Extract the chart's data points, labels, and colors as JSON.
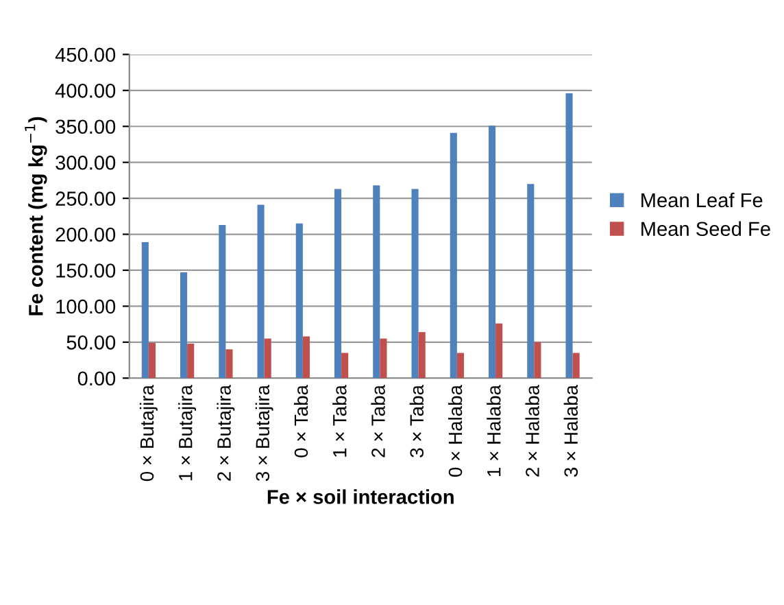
{
  "chart_data": {
    "type": "bar",
    "xlabel": "Fe × soil interaction",
    "ylabel": "Fe content (mg kg$^{−1}$)",
    "categories": [
      "0 × Butajira",
      "1 × Butajira",
      "2 × Butajira",
      "3 × Butajira",
      "0 × Taba",
      "1 × Taba",
      "2 × Taba",
      "3 × Taba",
      "0 × Halaba",
      "1 × Halaba",
      "2 × Halaba",
      "3 × Halaba"
    ],
    "series": [
      {
        "name": "Mean Leaf Fe",
        "color": "#4f81bd",
        "values": [
          189,
          147,
          213,
          241,
          215,
          263,
          268,
          263,
          341,
          351,
          270,
          396
        ]
      },
      {
        "name": "Mean Seed Fe",
        "color": "#c0504d",
        "values": [
          49,
          48,
          40,
          55,
          58,
          35,
          55,
          64,
          35,
          76,
          50,
          35
        ]
      }
    ],
    "ylim": [
      0,
      450
    ],
    "yticks": [
      {
        "value": 0,
        "label": "0.00"
      },
      {
        "value": 50,
        "label": "50.00"
      },
      {
        "value": 100,
        "label": "100.00"
      },
      {
        "value": 150,
        "label": "150.00"
      },
      {
        "value": 200,
        "label": "200.00"
      },
      {
        "value": 250,
        "label": "250.00"
      },
      {
        "value": 300,
        "label": "300.00"
      },
      {
        "value": 350,
        "label": "350.00"
      },
      {
        "value": 400,
        "label": "400.00"
      },
      {
        "value": 450,
        "label": "450.00"
      }
    ],
    "grid": "y",
    "legend": "right"
  }
}
